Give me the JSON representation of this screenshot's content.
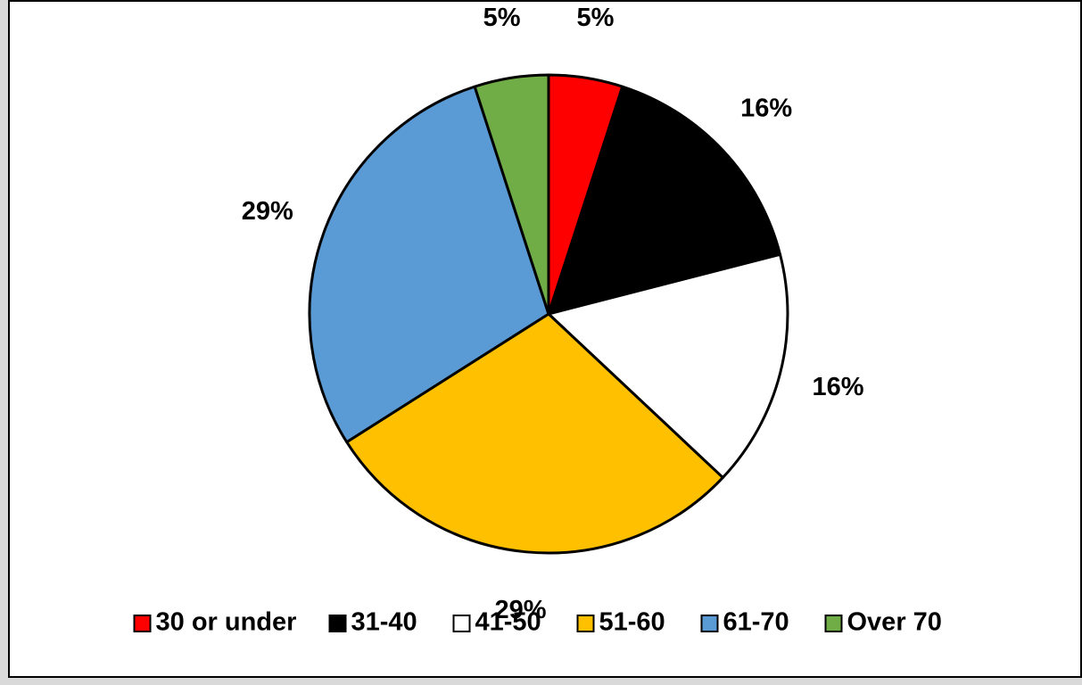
{
  "chart_data": {
    "type": "pie",
    "categories": [
      "30 or under",
      "31-40",
      "41-50",
      "51-60",
      "61-70",
      "Over 70"
    ],
    "values": [
      5,
      16,
      16,
      29,
      29,
      5
    ],
    "value_labels": [
      "5%",
      "16%",
      "16%",
      "29%",
      "29%",
      "5%"
    ],
    "colors": [
      "#ff0000",
      "#000000",
      "#ffffff",
      "#ffc000",
      "#5b9bd5",
      "#70ad47"
    ],
    "start_angle_deg": 0,
    "direction": "clockwise",
    "legend_position": "bottom",
    "title": ""
  }
}
